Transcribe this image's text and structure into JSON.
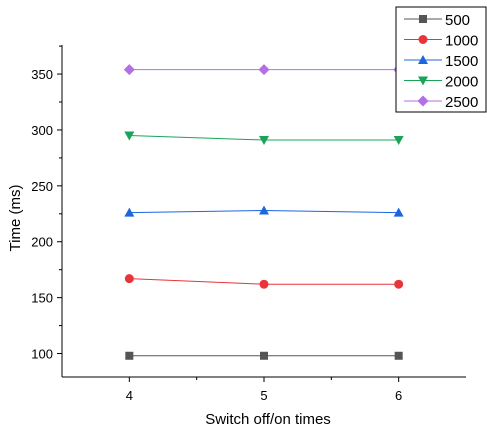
{
  "chart_data": {
    "type": "line",
    "title": "",
    "xlabel": "Switch off/on times",
    "ylabel": "Time (ms)",
    "x": [
      4,
      5,
      6
    ],
    "xlim": [
      3.5,
      6.5
    ],
    "ylim": [
      79,
      376
    ],
    "xticks": [
      "4",
      "5",
      "6"
    ],
    "yticks": [
      "100",
      "150",
      "200",
      "250",
      "300",
      "350"
    ],
    "grid": false,
    "legend_position": "top-right",
    "series": [
      {
        "name": "500",
        "color": "#555555",
        "marker": "square",
        "values": [
          98,
          98,
          98
        ]
      },
      {
        "name": "1000",
        "color": "#e8343a",
        "marker": "circle",
        "values": [
          167,
          162,
          162
        ]
      },
      {
        "name": "1500",
        "color": "#1c67e0",
        "marker": "triangle-up",
        "values": [
          226,
          228,
          226
        ]
      },
      {
        "name": "2000",
        "color": "#1aa45a",
        "marker": "triangle-down",
        "values": [
          295,
          291,
          291
        ]
      },
      {
        "name": "2500",
        "color": "#b46fe6",
        "marker": "diamond",
        "values": [
          354,
          354,
          354
        ]
      }
    ]
  }
}
